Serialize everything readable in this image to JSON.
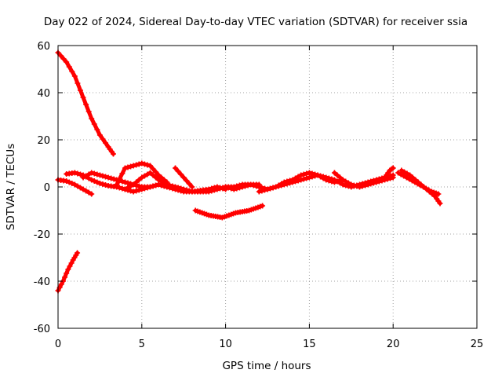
{
  "chart_data": {
    "type": "scatter",
    "title": "Day 022 of 2024, Sidereal Day-to-day VTEC variation (SDTVAR) for receiver ssia",
    "xlabel": "GPS time / hours",
    "ylabel": "SDTVAR / TECUs",
    "xlim": [
      0,
      25
    ],
    "ylim": [
      -60,
      60
    ],
    "xticks": [
      0,
      5,
      10,
      15,
      20,
      25
    ],
    "yticks": [
      -60,
      -40,
      -20,
      0,
      20,
      40,
      60
    ],
    "grid": true,
    "legend": "none",
    "marker_color": "#ff0000",
    "series": [
      {
        "name": "trace-1",
        "x": [
          0,
          0.5,
          1.0,
          1.5,
          2.0,
          2.5,
          3.0,
          3.3
        ],
        "y": [
          57,
          53,
          47,
          38,
          29,
          22,
          17,
          14
        ]
      },
      {
        "name": "trace-2",
        "x": [
          0,
          0.3,
          0.6,
          0.9,
          1.15
        ],
        "y": [
          -44,
          -40,
          -35,
          -31,
          -28
        ]
      },
      {
        "name": "trace-3",
        "x": [
          0,
          0.5,
          1.0,
          1.5,
          2.0
        ],
        "y": [
          3,
          2.5,
          1,
          -1,
          -3
        ]
      },
      {
        "name": "trace-4",
        "x": [
          0.5,
          1.0,
          1.5,
          2.0,
          2.5,
          3.0,
          3.5,
          4.0,
          4.5,
          5.0,
          5.5,
          6.0,
          6.5,
          7.0,
          7.5,
          8.0,
          8.5,
          9.0,
          9.5,
          10.0
        ],
        "y": [
          5.5,
          6,
          5,
          3,
          1.5,
          0.5,
          0,
          -1,
          -2,
          -1,
          0,
          1,
          0,
          -1,
          -2,
          -2,
          -1.5,
          -1,
          0,
          -1
        ]
      },
      {
        "name": "trace-5",
        "x": [
          1.5,
          2.0,
          2.5,
          3.0,
          3.5,
          4.0,
          4.5,
          5.0,
          5.5,
          6.0,
          6.5,
          7.0,
          7.5,
          8.0,
          8.5,
          9.0,
          9.5,
          10.0,
          10.5,
          11.0,
          11.5,
          12.0
        ],
        "y": [
          4,
          6,
          5,
          4,
          3,
          2,
          1,
          0,
          0,
          1,
          0,
          0,
          -1,
          -2,
          -2,
          -2,
          -1,
          0,
          0,
          1,
          1,
          1
        ]
      },
      {
        "name": "trace-6",
        "x": [
          3.5,
          4.0,
          4.5,
          5.0,
          5.5,
          6.0,
          6.5
        ],
        "y": [
          1,
          8,
          9,
          10,
          9,
          5,
          2
        ]
      },
      {
        "name": "trace-7",
        "x": [
          4.0,
          4.5,
          5.0,
          5.5,
          6.0,
          6.5,
          7.0,
          7.5,
          8.0,
          8.5
        ],
        "y": [
          -1,
          1,
          4,
          6,
          3,
          1,
          0,
          -1,
          -2,
          -2
        ]
      },
      {
        "name": "trace-8",
        "x": [
          7.0,
          7.5,
          8.0
        ],
        "y": [
          8,
          4,
          0
        ]
      },
      {
        "name": "trace-9",
        "x": [
          8.2,
          8.6,
          9.0,
          9.4,
          9.8,
          10.2,
          10.6,
          11.0,
          11.4,
          11.8,
          12.2
        ],
        "y": [
          -10,
          -11,
          -12,
          -12.5,
          -13,
          -12,
          -11,
          -10.5,
          -10,
          -9,
          -8
        ]
      },
      {
        "name": "trace-10",
        "x": [
          10,
          10.5,
          11,
          11.5,
          12,
          12.5,
          13,
          13.5,
          14,
          14.5,
          15,
          15.5,
          16,
          16.5,
          17
        ],
        "y": [
          0,
          -1,
          0,
          1,
          0,
          -1,
          0,
          2,
          3,
          5,
          6,
          5,
          3,
          2,
          3
        ]
      },
      {
        "name": "trace-11",
        "x": [
          12,
          12.5,
          13,
          13.5,
          14,
          14.5,
          15,
          15.5,
          16,
          16.5,
          17,
          17.5,
          18,
          18.5,
          19,
          19.5,
          20
        ],
        "y": [
          -2,
          -1,
          0,
          1,
          2,
          3,
          4,
          5,
          4,
          3,
          1,
          0,
          1,
          2,
          3,
          4,
          5
        ]
      },
      {
        "name": "trace-12",
        "x": [
          16.5,
          17,
          17.5,
          18,
          18.5,
          19,
          19.5,
          20
        ],
        "y": [
          6,
          3,
          1,
          0,
          1,
          2,
          3,
          4
        ]
      },
      {
        "name": "trace-13",
        "x": [
          19.5,
          19.8,
          20.0
        ],
        "y": [
          4,
          7,
          8
        ]
      },
      {
        "name": "trace-14",
        "x": [
          20.3,
          20.8,
          21.3,
          21.8,
          22.3,
          22.7
        ],
        "y": [
          6,
          4,
          2,
          0,
          -2,
          -3
        ]
      },
      {
        "name": "trace-15",
        "x": [
          20.5,
          21,
          21.5,
          22,
          22.5,
          22.8
        ],
        "y": [
          7,
          5,
          2,
          -1,
          -4,
          -7
        ]
      }
    ]
  }
}
